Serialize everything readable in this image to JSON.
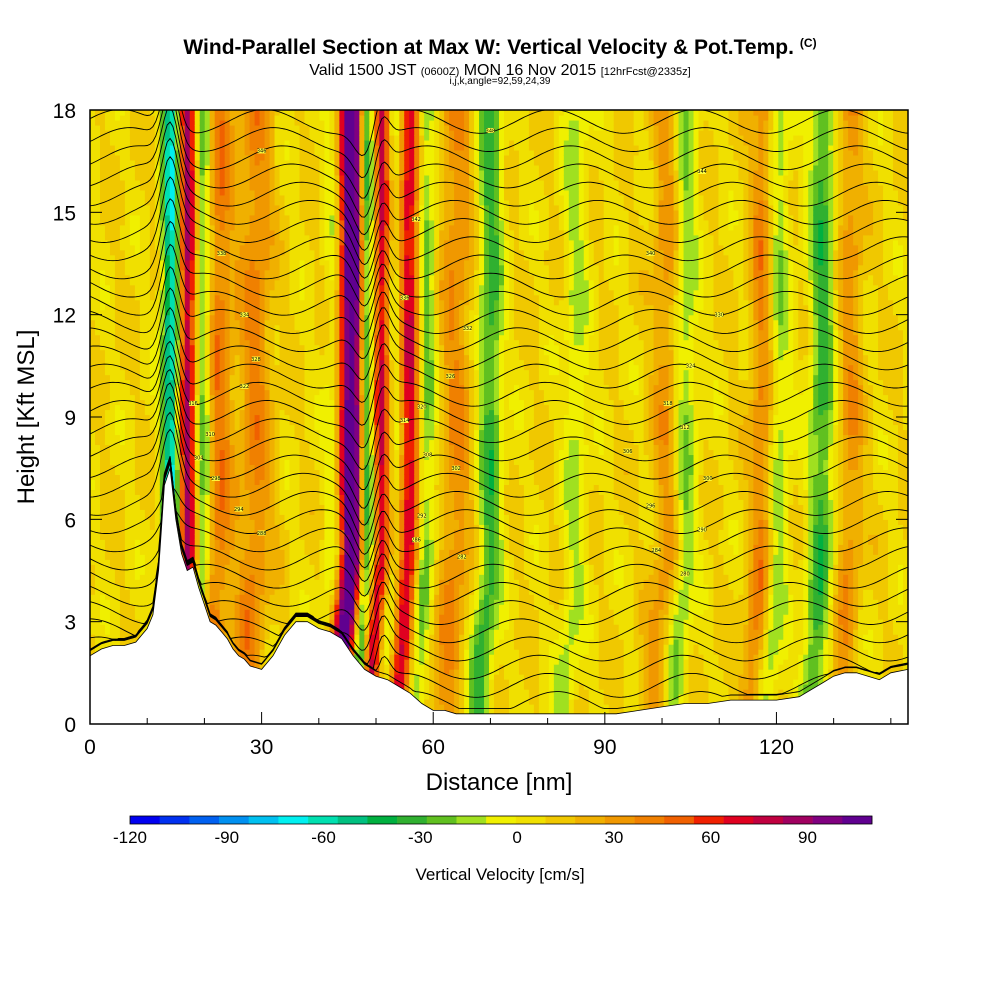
{
  "title": {
    "main": "Wind-Parallel Section at Max W: Vertical Velocity & Pot.Temp.",
    "copyright": "(C)",
    "valid_prefix": "Valid 1500 JST",
    "valid_utc": "(0600Z)",
    "valid_date": "MON 16 Nov 2015",
    "forecast": "[12hrFcst@2335z]",
    "indices": "i,j,k,angle=92,59,24,39"
  },
  "chart_data": {
    "type": "heatmap",
    "xlabel": "Distance [nm]",
    "ylabel": "Height [Kft MSL]",
    "xlim": [
      0,
      143
    ],
    "ylim": [
      0,
      18
    ],
    "x_ticks": [
      0,
      30,
      60,
      90,
      120
    ],
    "x_tick_labels": [
      "0",
      "30",
      "60",
      "90",
      "120"
    ],
    "y_ticks": [
      0,
      3,
      6,
      9,
      12,
      15,
      18
    ],
    "y_tick_labels": [
      "0",
      "3",
      "6",
      "9",
      "12",
      "15",
      "18"
    ],
    "colorbar": {
      "label": "Vertical Velocity [cm/s]",
      "min": -120,
      "max": 110,
      "tick_values": [
        -120,
        -90,
        -60,
        -30,
        0,
        30,
        60,
        90
      ],
      "tick_labels": [
        "-120",
        "-90",
        "-60",
        "-30",
        "0",
        "30",
        "60",
        "90"
      ],
      "colors": [
        "#0000f0",
        "#0030f0",
        "#0060f0",
        "#0090f0",
        "#00c0f0",
        "#00f0f0",
        "#00e0b0",
        "#00c080",
        "#00b040",
        "#30b030",
        "#60c020",
        "#a0e020",
        "#f0f000",
        "#f0e000",
        "#f0c800",
        "#f0b000",
        "#f09800",
        "#f08000",
        "#f06000",
        "#f02000",
        "#e00020",
        "#c00040",
        "#a00060",
        "#800080",
        "#600090"
      ]
    },
    "terrain": [
      [
        0,
        2.0
      ],
      [
        2,
        2.2
      ],
      [
        4,
        2.3
      ],
      [
        6,
        2.3
      ],
      [
        8,
        2.4
      ],
      [
        10,
        2.8
      ],
      [
        11,
        3.2
      ],
      [
        12,
        4.5
      ],
      [
        13,
        7.0
      ],
      [
        14,
        7.5
      ],
      [
        15,
        6.0
      ],
      [
        16,
        5.0
      ],
      [
        17,
        4.5
      ],
      [
        18,
        4.6
      ],
      [
        19,
        4.0
      ],
      [
        20,
        3.5
      ],
      [
        21,
        3.0
      ],
      [
        22,
        2.9
      ],
      [
        23,
        2.7
      ],
      [
        24,
        2.5
      ],
      [
        25,
        2.2
      ],
      [
        26,
        2.0
      ],
      [
        27,
        1.9
      ],
      [
        28,
        1.7
      ],
      [
        30,
        1.6
      ],
      [
        32,
        2.0
      ],
      [
        34,
        2.6
      ],
      [
        36,
        3.0
      ],
      [
        38,
        3.0
      ],
      [
        40,
        2.8
      ],
      [
        42,
        2.7
      ],
      [
        44,
        2.5
      ],
      [
        46,
        2.0
      ],
      [
        48,
        1.6
      ],
      [
        50,
        1.4
      ],
      [
        52,
        1.3
      ],
      [
        54,
        1.1
      ],
      [
        56,
        0.9
      ],
      [
        58,
        0.6
      ],
      [
        60,
        0.4
      ],
      [
        62,
        0.4
      ],
      [
        64,
        0.3
      ],
      [
        66,
        0.3
      ],
      [
        68,
        0.3
      ],
      [
        70,
        0.3
      ],
      [
        72,
        0.3
      ],
      [
        74,
        0.3
      ],
      [
        76,
        0.3
      ],
      [
        78,
        0.3
      ],
      [
        80,
        0.3
      ],
      [
        84,
        0.3
      ],
      [
        88,
        0.3
      ],
      [
        92,
        0.3
      ],
      [
        96,
        0.4
      ],
      [
        100,
        0.5
      ],
      [
        104,
        0.6
      ],
      [
        108,
        0.6
      ],
      [
        112,
        0.7
      ],
      [
        116,
        0.7
      ],
      [
        120,
        0.7
      ],
      [
        124,
        0.8
      ],
      [
        126,
        1.0
      ],
      [
        128,
        1.2
      ],
      [
        130,
        1.4
      ],
      [
        132,
        1.5
      ],
      [
        134,
        1.5
      ],
      [
        136,
        1.4
      ],
      [
        138,
        1.3
      ],
      [
        140,
        1.5
      ],
      [
        143,
        1.6
      ]
    ],
    "updrafts": [
      {
        "x": 17,
        "w": 1.6,
        "amp": 95
      },
      {
        "x": 44,
        "w": 1.5,
        "amp": 60
      },
      {
        "x": 46.5,
        "w": 1.5,
        "amp": 105
      },
      {
        "x": 51,
        "w": 1.8,
        "amp": 90
      },
      {
        "x": 56,
        "w": 1.5,
        "amp": 70
      },
      {
        "x": 22,
        "w": 2.0,
        "amp": 40
      },
      {
        "x": 118,
        "w": 1.6,
        "amp": 40
      },
      {
        "x": 101,
        "w": 1.8,
        "amp": 25
      },
      {
        "x": 64,
        "w": 2.0,
        "amp": 28
      },
      {
        "x": 133,
        "w": 1.5,
        "amp": 25
      },
      {
        "x": 29,
        "w": 2.0,
        "amp": 30
      }
    ],
    "downdrafts": [
      {
        "x": 14.5,
        "w": 1.2,
        "amp": -95
      },
      {
        "x": 19.5,
        "w": 1.3,
        "amp": -70
      },
      {
        "x": 48.5,
        "w": 1.2,
        "amp": -110
      },
      {
        "x": 53,
        "w": 1.2,
        "amp": -60
      },
      {
        "x": 43,
        "w": 1.2,
        "amp": -50
      },
      {
        "x": 58.5,
        "w": 1.3,
        "amp": -40
      },
      {
        "x": 70,
        "w": 1.5,
        "amp": -40
      },
      {
        "x": 120,
        "w": 1.5,
        "amp": -35
      },
      {
        "x": 128,
        "w": 1.5,
        "amp": -40
      },
      {
        "x": 104,
        "w": 1.4,
        "amp": -30
      },
      {
        "x": 85,
        "w": 1.5,
        "amp": -20
      }
    ],
    "theta_label_positions": [
      {
        "x": 70,
        "y": 17.4,
        "label": "348"
      },
      {
        "x": 30,
        "y": 16.8,
        "label": "346"
      },
      {
        "x": 107,
        "y": 16.2,
        "label": "344"
      },
      {
        "x": 57,
        "y": 14.8,
        "label": "342"
      },
      {
        "x": 98,
        "y": 13.8,
        "label": "340"
      },
      {
        "x": 23,
        "y": 13.8,
        "label": "338"
      },
      {
        "x": 55,
        "y": 12.5,
        "label": "336"
      },
      {
        "x": 27,
        "y": 12.0,
        "label": "334"
      },
      {
        "x": 66,
        "y": 11.6,
        "label": "332"
      },
      {
        "x": 110,
        "y": 12.0,
        "label": "330"
      },
      {
        "x": 29,
        "y": 10.7,
        "label": "328"
      },
      {
        "x": 63,
        "y": 10.2,
        "label": "326"
      },
      {
        "x": 105,
        "y": 10.5,
        "label": "324"
      },
      {
        "x": 27,
        "y": 9.9,
        "label": "322"
      },
      {
        "x": 58,
        "y": 9.3,
        "label": "320"
      },
      {
        "x": 101,
        "y": 9.4,
        "label": "318"
      },
      {
        "x": 18,
        "y": 9.4,
        "label": "316"
      },
      {
        "x": 55,
        "y": 8.9,
        "label": "314"
      },
      {
        "x": 104,
        "y": 8.7,
        "label": "312"
      },
      {
        "x": 21,
        "y": 8.5,
        "label": "310"
      },
      {
        "x": 59,
        "y": 7.9,
        "label": "308"
      },
      {
        "x": 94,
        "y": 8.0,
        "label": "306"
      },
      {
        "x": 19,
        "y": 7.8,
        "label": "304"
      },
      {
        "x": 64,
        "y": 7.5,
        "label": "302"
      },
      {
        "x": 108,
        "y": 7.2,
        "label": "300"
      },
      {
        "x": 22,
        "y": 7.2,
        "label": "298"
      },
      {
        "x": 98,
        "y": 6.4,
        "label": "296"
      },
      {
        "x": 26,
        "y": 6.3,
        "label": "294"
      },
      {
        "x": 58,
        "y": 6.1,
        "label": "292"
      },
      {
        "x": 107,
        "y": 5.7,
        "label": "290"
      },
      {
        "x": 30,
        "y": 5.6,
        "label": "288"
      },
      {
        "x": 57,
        "y": 5.4,
        "label": "286"
      },
      {
        "x": 99,
        "y": 5.1,
        "label": "284"
      },
      {
        "x": 65,
        "y": 4.9,
        "label": "282"
      },
      {
        "x": 104,
        "y": 4.4,
        "label": "280"
      }
    ]
  }
}
